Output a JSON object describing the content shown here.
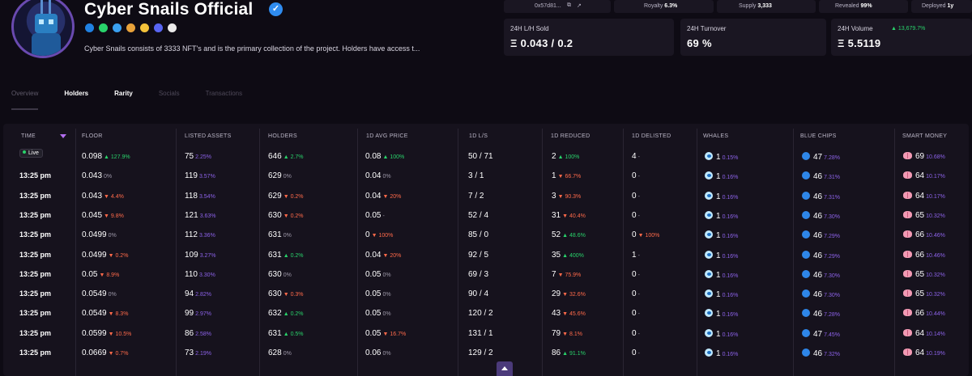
{
  "header": {
    "title": "Cyber Snails Official",
    "description": "Cyber Snails consists of 3333 NFT's and is the primary collection of the project. Holders have access t..."
  },
  "socials": [
    {
      "icon": "opensea-icon",
      "color": "#2081e2"
    },
    {
      "icon": "wifi-icon",
      "color": "#29d36b"
    },
    {
      "icon": "globe-icon",
      "color": "#3aa0f0"
    },
    {
      "icon": "coin-icon",
      "color": "#e8a23a"
    },
    {
      "icon": "looksrare-icon",
      "color": "#f3c23a"
    },
    {
      "icon": "discord-icon",
      "color": "#5865f2"
    },
    {
      "icon": "x2y2-icon",
      "color": "#eaeaea"
    }
  ],
  "topstats": {
    "contract": "0x57d81...",
    "royalty_label": "Royalty",
    "royalty_value": "6.3%",
    "supply_label": "Supply",
    "supply_value": "3,333",
    "revealed_label": "Revealed",
    "revealed_value": "99%",
    "deployed_label": "Deployed",
    "deployed_value": "1y"
  },
  "cards": {
    "lh_label": "24H L/H Sold",
    "lh_value": "Ξ 0.043 / 0.2",
    "turnover_label": "24H Turnover",
    "turnover_value": "69 %",
    "volume_label": "24H Volume",
    "volume_value": "Ξ 5.5119",
    "volume_change": "13,679.7%"
  },
  "tabs": [
    "Overview",
    "Holders",
    "Rarity",
    "Socials",
    "Transactions"
  ],
  "columns": [
    "TIME",
    "FLOOR",
    "LISTED ASSETS",
    "HOLDERS",
    "1D AVG PRICE",
    "1D L/S",
    "1D REDUCED",
    "1D DELISTED",
    "WHALES",
    "BLUE CHIPS",
    "SMART MONEY"
  ],
  "live_label": "Live",
  "rows": [
    {
      "time": "",
      "live": true,
      "floor": "0.098",
      "floor_c": "127.9%",
      "floor_d": "up",
      "listed": "75",
      "listed_p": "2.25%",
      "holders": "646",
      "holders_c": "2.7%",
      "holders_d": "up",
      "avg": "0.08",
      "avg_c": "100%",
      "avg_d": "up",
      "ls": "50 / 71",
      "red": "2",
      "red_c": "100%",
      "red_d": "up",
      "del": "4",
      "del_c": "-",
      "del_d": "flat",
      "whales": "1",
      "whales_p": "0.15%",
      "chips": "47",
      "chips_p": "7.28%",
      "smart": "69",
      "smart_p": "10.68%"
    },
    {
      "time": "13:25 pm",
      "live": false,
      "floor": "0.043",
      "floor_c": "0%",
      "floor_d": "flat",
      "listed": "119",
      "listed_p": "3.57%",
      "holders": "629",
      "holders_c": "0%",
      "holders_d": "flat",
      "avg": "0.04",
      "avg_c": "0%",
      "avg_d": "flat",
      "ls": "3 / 1",
      "red": "1",
      "red_c": "66.7%",
      "red_d": "down",
      "del": "0",
      "del_c": "-",
      "del_d": "flat",
      "whales": "1",
      "whales_p": "0.16%",
      "chips": "46",
      "chips_p": "7.31%",
      "smart": "64",
      "smart_p": "10.17%"
    },
    {
      "time": "13:25 pm",
      "live": false,
      "floor": "0.043",
      "floor_c": "4.4%",
      "floor_d": "down",
      "listed": "118",
      "listed_p": "3.54%",
      "holders": "629",
      "holders_c": "0.2%",
      "holders_d": "down",
      "avg": "0.04",
      "avg_c": "20%",
      "avg_d": "down",
      "ls": "7 / 2",
      "red": "3",
      "red_c": "90.3%",
      "red_d": "down",
      "del": "0",
      "del_c": "-",
      "del_d": "flat",
      "whales": "1",
      "whales_p": "0.16%",
      "chips": "46",
      "chips_p": "7.31%",
      "smart": "64",
      "smart_p": "10.17%"
    },
    {
      "time": "13:25 pm",
      "live": false,
      "floor": "0.045",
      "floor_c": "9.8%",
      "floor_d": "down",
      "listed": "121",
      "listed_p": "3.63%",
      "holders": "630",
      "holders_c": "0.2%",
      "holders_d": "down",
      "avg": "0.05",
      "avg_c": "-",
      "avg_d": "flat",
      "ls": "52 / 4",
      "red": "31",
      "red_c": "40.4%",
      "red_d": "down",
      "del": "0",
      "del_c": "-",
      "del_d": "flat",
      "whales": "1",
      "whales_p": "0.16%",
      "chips": "46",
      "chips_p": "7.30%",
      "smart": "65",
      "smart_p": "10.32%"
    },
    {
      "time": "13:25 pm",
      "live": false,
      "floor": "0.0499",
      "floor_c": "0%",
      "floor_d": "flat",
      "listed": "112",
      "listed_p": "3.36%",
      "holders": "631",
      "holders_c": "0%",
      "holders_d": "flat",
      "avg": "0",
      "avg_c": "100%",
      "avg_d": "down",
      "ls": "85 / 0",
      "red": "52",
      "red_c": "48.6%",
      "red_d": "up",
      "del": "0",
      "del_c": "100%",
      "del_d": "down",
      "whales": "1",
      "whales_p": "0.16%",
      "chips": "46",
      "chips_p": "7.29%",
      "smart": "66",
      "smart_p": "10.46%"
    },
    {
      "time": "13:25 pm",
      "live": false,
      "floor": "0.0499",
      "floor_c": "0.2%",
      "floor_d": "down",
      "listed": "109",
      "listed_p": "3.27%",
      "holders": "631",
      "holders_c": "0.2%",
      "holders_d": "up",
      "avg": "0.04",
      "avg_c": "20%",
      "avg_d": "down",
      "ls": "92 / 5",
      "red": "35",
      "red_c": "400%",
      "red_d": "up",
      "del": "1",
      "del_c": "-",
      "del_d": "flat",
      "whales": "1",
      "whales_p": "0.16%",
      "chips": "46",
      "chips_p": "7.29%",
      "smart": "66",
      "smart_p": "10.46%"
    },
    {
      "time": "13:25 pm",
      "live": false,
      "floor": "0.05",
      "floor_c": "8.9%",
      "floor_d": "down",
      "listed": "110",
      "listed_p": "3.30%",
      "holders": "630",
      "holders_c": "0%",
      "holders_d": "flat",
      "avg": "0.05",
      "avg_c": "0%",
      "avg_d": "flat",
      "ls": "69 / 3",
      "red": "7",
      "red_c": "75.9%",
      "red_d": "down",
      "del": "0",
      "del_c": "-",
      "del_d": "flat",
      "whales": "1",
      "whales_p": "0.16%",
      "chips": "46",
      "chips_p": "7.30%",
      "smart": "65",
      "smart_p": "10.32%"
    },
    {
      "time": "13:25 pm",
      "live": false,
      "floor": "0.0549",
      "floor_c": "0%",
      "floor_d": "flat",
      "listed": "94",
      "listed_p": "2.82%",
      "holders": "630",
      "holders_c": "0.3%",
      "holders_d": "down",
      "avg": "0.05",
      "avg_c": "0%",
      "avg_d": "flat",
      "ls": "90 / 4",
      "red": "29",
      "red_c": "32.6%",
      "red_d": "down",
      "del": "0",
      "del_c": "-",
      "del_d": "flat",
      "whales": "1",
      "whales_p": "0.16%",
      "chips": "46",
      "chips_p": "7.30%",
      "smart": "65",
      "smart_p": "10.32%"
    },
    {
      "time": "13:25 pm",
      "live": false,
      "floor": "0.0549",
      "floor_c": "8.3%",
      "floor_d": "down",
      "listed": "99",
      "listed_p": "2.97%",
      "holders": "632",
      "holders_c": "0.2%",
      "holders_d": "up",
      "avg": "0.05",
      "avg_c": "0%",
      "avg_d": "flat",
      "ls": "120 / 2",
      "red": "43",
      "red_c": "45.6%",
      "red_d": "down",
      "del": "0",
      "del_c": "-",
      "del_d": "flat",
      "whales": "1",
      "whales_p": "0.16%",
      "chips": "46",
      "chips_p": "7.28%",
      "smart": "66",
      "smart_p": "10.44%"
    },
    {
      "time": "13:25 pm",
      "live": false,
      "floor": "0.0599",
      "floor_c": "10.5%",
      "floor_d": "down",
      "listed": "86",
      "listed_p": "2.58%",
      "holders": "631",
      "holders_c": "0.5%",
      "holders_d": "up",
      "avg": "0.05",
      "avg_c": "16.7%",
      "avg_d": "down",
      "ls": "131 / 1",
      "red": "79",
      "red_c": "8.1%",
      "red_d": "down",
      "del": "0",
      "del_c": "-",
      "del_d": "flat",
      "whales": "1",
      "whales_p": "0.16%",
      "chips": "47",
      "chips_p": "7.45%",
      "smart": "64",
      "smart_p": "10.14%"
    },
    {
      "time": "13:25 pm",
      "live": false,
      "floor": "0.0669",
      "floor_c": "0.7%",
      "floor_d": "down",
      "listed": "73",
      "listed_p": "2.19%",
      "holders": "628",
      "holders_c": "0%",
      "holders_d": "flat",
      "avg": "0.06",
      "avg_c": "0%",
      "avg_d": "flat",
      "ls": "129 / 2",
      "red": "86",
      "red_c": "91.1%",
      "red_d": "up",
      "del": "0",
      "del_c": "-",
      "del_d": "flat",
      "whales": "1",
      "whales_p": "0.16%",
      "chips": "46",
      "chips_p": "7.32%",
      "smart": "64",
      "smart_p": "10.19%"
    }
  ]
}
